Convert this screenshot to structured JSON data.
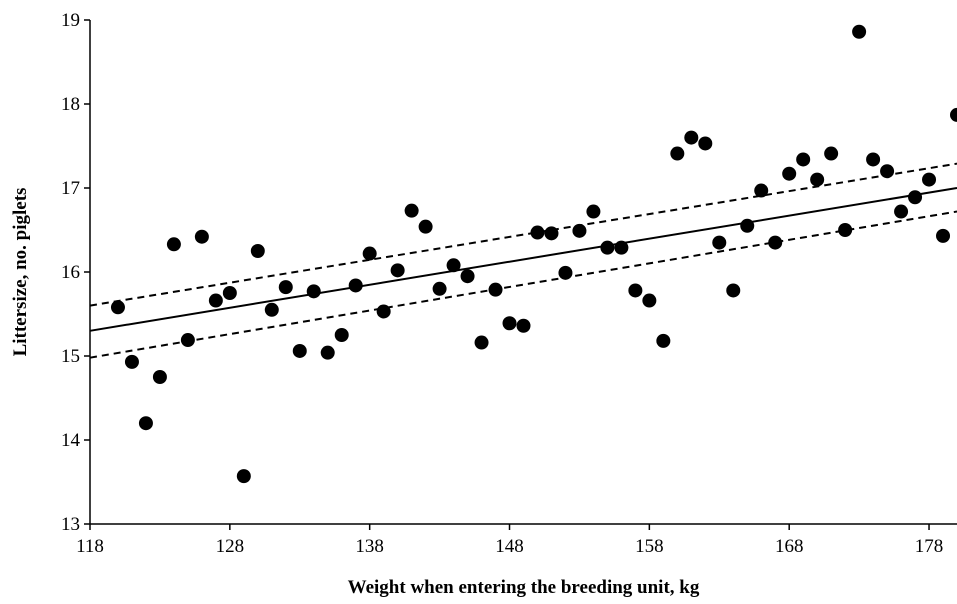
{
  "chart_data": {
    "type": "scatter",
    "title": "",
    "xlabel": "Weight when entering the breeding unit, kg",
    "ylabel": "Littersize, no. piglets",
    "xlim": [
      118,
      180
    ],
    "ylim": [
      13,
      19
    ],
    "xticks": [
      118,
      128,
      138,
      148,
      158,
      168,
      178
    ],
    "yticks": [
      13,
      14,
      15,
      16,
      17,
      18,
      19
    ],
    "grid": false,
    "legend": "none",
    "series": [
      {
        "points": [
          [
            120,
            15.58
          ],
          [
            121,
            14.93
          ],
          [
            122,
            14.2
          ],
          [
            123,
            14.75
          ],
          [
            124,
            16.33
          ],
          [
            125,
            15.19
          ],
          [
            126,
            16.42
          ],
          [
            127,
            15.66
          ],
          [
            128,
            15.75
          ],
          [
            129,
            13.57
          ],
          [
            130,
            16.25
          ],
          [
            131,
            15.55
          ],
          [
            132,
            15.82
          ],
          [
            133,
            15.06
          ],
          [
            134,
            15.77
          ],
          [
            135,
            15.04
          ],
          [
            136,
            15.25
          ],
          [
            137,
            15.84
          ],
          [
            138,
            16.22
          ],
          [
            139,
            15.53
          ],
          [
            140,
            16.02
          ],
          [
            141,
            16.73
          ],
          [
            142,
            16.54
          ],
          [
            143,
            15.8
          ],
          [
            144,
            16.08
          ],
          [
            145,
            15.95
          ],
          [
            146,
            15.16
          ],
          [
            147,
            15.79
          ],
          [
            148,
            15.39
          ],
          [
            149,
            15.36
          ],
          [
            150,
            16.47
          ],
          [
            151,
            16.46
          ],
          [
            152,
            15.99
          ],
          [
            153,
            16.49
          ],
          [
            154,
            16.72
          ],
          [
            155,
            16.29
          ],
          [
            156,
            16.29
          ],
          [
            157,
            15.78
          ],
          [
            158,
            15.66
          ],
          [
            159,
            15.18
          ],
          [
            160,
            17.41
          ],
          [
            161,
            17.6
          ],
          [
            162,
            17.53
          ],
          [
            163,
            16.35
          ],
          [
            164,
            15.78
          ],
          [
            165,
            16.55
          ],
          [
            166,
            16.97
          ],
          [
            167,
            16.35
          ],
          [
            168,
            17.17
          ],
          [
            169,
            17.34
          ],
          [
            170,
            17.1
          ],
          [
            171,
            17.41
          ],
          [
            172,
            16.5
          ],
          [
            173,
            18.86
          ],
          [
            174,
            17.34
          ],
          [
            175,
            17.2
          ],
          [
            176,
            16.72
          ],
          [
            177,
            16.89
          ],
          [
            178,
            17.1
          ],
          [
            179,
            16.43
          ],
          [
            180,
            17.87
          ]
        ]
      }
    ],
    "lines": [
      {
        "style": "solid",
        "from": [
          118,
          15.3
        ],
        "to": [
          180,
          17.0
        ]
      },
      {
        "style": "dashed",
        "from": [
          118,
          15.6
        ],
        "to": [
          180,
          17.29
        ]
      },
      {
        "style": "dashed",
        "from": [
          118,
          14.98
        ],
        "to": [
          180,
          16.72
        ]
      }
    ]
  }
}
